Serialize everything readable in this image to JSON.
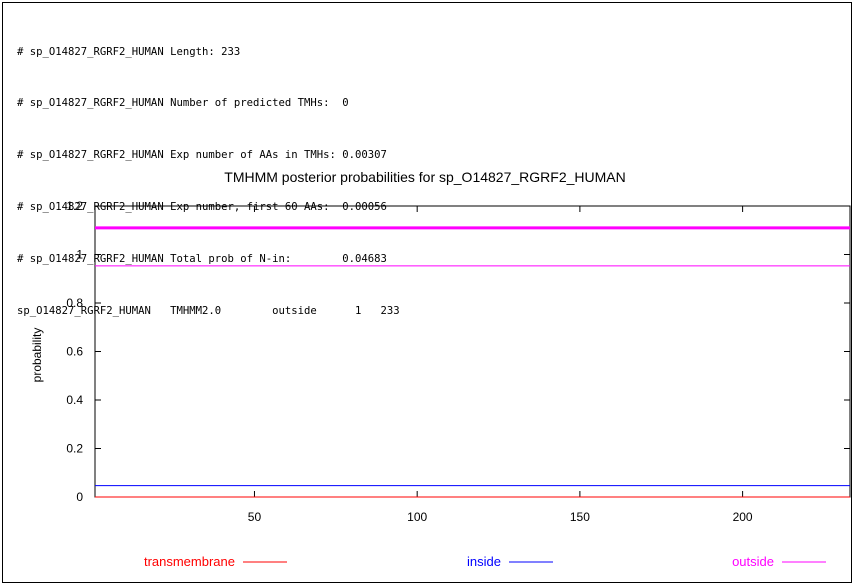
{
  "header": {
    "lines": [
      "# sp_O14827_RGRF2_HUMAN Length: 233",
      "# sp_O14827_RGRF2_HUMAN Number of predicted TMHs:  0",
      "# sp_O14827_RGRF2_HUMAN Exp number of AAs in TMHs: 0.00307",
      "# sp_O14827_RGRF2_HUMAN Exp number, first 60 AAs:  0.00056",
      "# sp_O14827_RGRF2_HUMAN Total prob of N-in:        0.04683",
      "sp_O14827_RGRF2_HUMAN   TMHMM2.0        outside      1   233"
    ]
  },
  "chart_data": {
    "type": "line",
    "title": "TMHMM posterior probabilities for sp_O14827_RGRF2_HUMAN",
    "xlabel": "",
    "ylabel": "probability",
    "xlim": [
      1,
      233
    ],
    "ylim": [
      0,
      1.2
    ],
    "xticks": [
      50,
      100,
      150,
      200
    ],
    "yticks": [
      0,
      0.2,
      0.4,
      0.6,
      0.8,
      1,
      1.2
    ],
    "yticklabels": [
      "0",
      "0.2",
      "0.4",
      "0.6",
      "0.8",
      "1",
      "1.2"
    ],
    "grid": false,
    "legend_position": "bottom",
    "series": [
      {
        "name": "transmembrane",
        "color": "#ff0000",
        "x": [
          1,
          233
        ],
        "y": [
          0.0,
          0.0
        ],
        "width": 1
      },
      {
        "name": "inside",
        "color": "#0000ff",
        "x": [
          1,
          233
        ],
        "y": [
          0.04683,
          0.04683
        ],
        "width": 1
      },
      {
        "name": "outside",
        "color": "#ff00ff",
        "x": [
          1,
          233
        ],
        "y": [
          0.95317,
          0.95317
        ],
        "width": 1
      },
      {
        "name": "",
        "color": "#ff00ff",
        "x": [
          1,
          233
        ],
        "y": [
          1.11,
          1.11
        ],
        "width": 3
      }
    ],
    "legend": [
      {
        "label": "transmembrane",
        "color": "#ff0000"
      },
      {
        "label": "inside",
        "color": "#0000ff"
      },
      {
        "label": "outside",
        "color": "#ff00ff"
      }
    ]
  }
}
